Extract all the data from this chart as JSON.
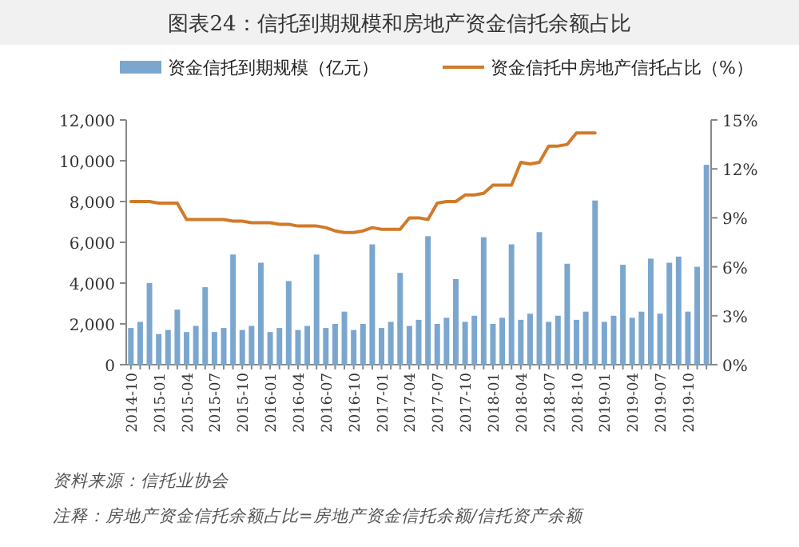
{
  "chart_data": {
    "type": "bar",
    "title": "图表24：信托到期规模和房地产资金信托余额占比",
    "categories": [
      "2014-10",
      null,
      null,
      "2015-01",
      null,
      null,
      "2015-04",
      null,
      null,
      "2015-07",
      null,
      null,
      "2015-10",
      null,
      null,
      "2016-01",
      null,
      null,
      "2016-04",
      null,
      null,
      "2016-07",
      null,
      null,
      "2016-10",
      null,
      null,
      "2017-01",
      null,
      null,
      "2017-04",
      null,
      null,
      "2017-07",
      null,
      null,
      "2017-10",
      null,
      null,
      "2018-01",
      null,
      null,
      "2018-04",
      null,
      null,
      "2018-07",
      null,
      null,
      "2018-10",
      null,
      null,
      "2019-01",
      null,
      null,
      "2019-04",
      null,
      null,
      "2019-07",
      null,
      null,
      "2019-10",
      null,
      null
    ],
    "series": [
      {
        "name": "资金信托到期规模（亿元）",
        "color": "#7ba7cf",
        "values": [
          1800,
          2100,
          4000,
          1500,
          1700,
          2700,
          1600,
          1900,
          3800,
          1600,
          1800,
          5400,
          1700,
          1900,
          5000,
          1600,
          1800,
          4100,
          1700,
          1900,
          5400,
          1800,
          2000,
          2600,
          1700,
          2000,
          5900,
          1800,
          2100,
          4500,
          1900,
          2200,
          6300,
          2000,
          2300,
          4200,
          2100,
          2400,
          6250,
          2000,
          2300,
          5900,
          2200,
          2500,
          6500,
          2100,
          2400,
          4950,
          2200,
          2600,
          8050,
          2100,
          2400,
          4900,
          2300,
          2600,
          5200,
          2500,
          5000,
          5300,
          2600,
          4800,
          9800
        ]
      },
      {
        "name": "资金信托中房地产信托占比（%）",
        "type": "line",
        "axis": "y2",
        "color": "#d17a2a",
        "values": [
          10,
          10,
          10,
          9.9,
          9.9,
          9.9,
          8.9,
          8.9,
          8.9,
          8.9,
          8.9,
          8.8,
          8.8,
          8.7,
          8.7,
          8.7,
          8.6,
          8.6,
          8.5,
          8.5,
          8.5,
          8.4,
          8.2,
          8.1,
          8.1,
          8.2,
          8.4,
          8.3,
          8.3,
          8.3,
          9,
          9,
          8.9,
          9.9,
          10,
          10,
          10.4,
          10.4,
          10.5,
          11,
          11,
          11,
          12.4,
          12.3,
          12.4,
          13.4,
          13.4,
          13.5,
          14.2,
          14.2,
          14.2,
          null,
          null,
          null,
          null,
          null,
          null,
          null,
          null,
          null,
          null,
          null,
          null
        ]
      }
    ],
    "ylim": [
      0,
      12000
    ],
    "yticks": [
      {
        "value": 0,
        "label": "0"
      },
      {
        "value": 2000,
        "label": "2,000"
      },
      {
        "value": 4000,
        "label": "4,000"
      },
      {
        "value": 6000,
        "label": "6,000"
      },
      {
        "value": 8000,
        "label": "8,000"
      },
      {
        "value": 10000,
        "label": "10,000"
      },
      {
        "value": 12000,
        "label": "12,000"
      }
    ],
    "y2lim": [
      0,
      15
    ],
    "y2ticks": [
      {
        "value": 0,
        "label": "0%"
      },
      {
        "value": 3,
        "label": "3%"
      },
      {
        "value": 6,
        "label": "6%"
      },
      {
        "value": 9,
        "label": "9%"
      },
      {
        "value": 12,
        "label": "12%"
      },
      {
        "value": 15,
        "label": "15%"
      }
    ],
    "legend": "top",
    "annotations": [
      "资料来源：信托业协会",
      "注释：房地产资金信托余额占比=房地产资金信托余额/信托资产余额"
    ]
  }
}
